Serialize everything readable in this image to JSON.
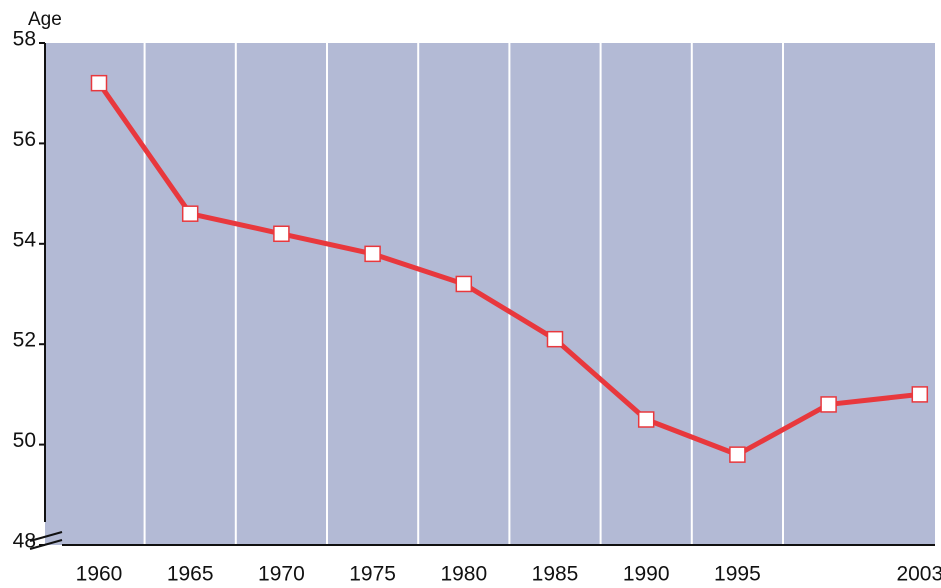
{
  "chart_data": {
    "type": "line",
    "y_label": "Age",
    "categories": [
      "1960",
      "1965",
      "1970",
      "1975",
      "1980",
      "1985",
      "1990",
      "1995",
      null,
      "2003"
    ],
    "values": [
      57.2,
      54.6,
      54.2,
      53.8,
      53.2,
      52.1,
      50.5,
      49.8,
      50.8,
      51.0
    ],
    "color": "#e8383d",
    "ylim": [
      48,
      58
    ],
    "yticks": [
      48,
      50,
      52,
      54,
      56,
      58
    ],
    "grid": true
  }
}
